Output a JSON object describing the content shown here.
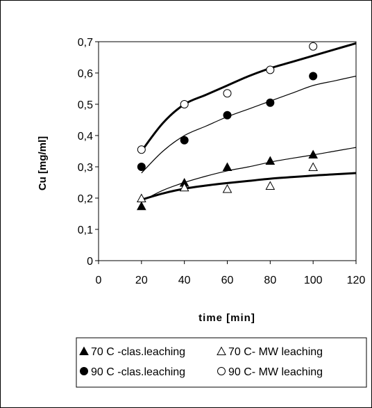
{
  "chart_data": {
    "type": "scatter",
    "title": "",
    "xlabel": "time [min]",
    "ylabel": "Cu [mg/ml]",
    "xlim": [
      0,
      120
    ],
    "ylim": [
      0,
      0.7
    ],
    "xticks": [
      0,
      20,
      40,
      60,
      80,
      100,
      120
    ],
    "yticks": [
      0,
      0.1,
      0.2,
      0.3,
      0.4,
      0.5,
      0.6,
      0.7
    ],
    "xtick_labels": [
      "0",
      "20",
      "40",
      "60",
      "80",
      "100",
      "120"
    ],
    "ytick_labels": [
      "0",
      "0,1",
      "0,2",
      "0,3",
      "0,4",
      "0,5",
      "0,6",
      "0,7"
    ],
    "grid": false,
    "legend_position": "bottom",
    "series": [
      {
        "name": "70 C -clas.leaching",
        "marker": "filled-triangle",
        "x": [
          20,
          40,
          60,
          80,
          100
        ],
        "y": [
          0.175,
          0.25,
          0.3,
          0.32,
          0.34
        ],
        "fit": {
          "x": [
            20,
            30,
            40,
            50,
            60,
            70,
            80,
            90,
            100,
            110,
            120
          ],
          "y": [
            0.19,
            0.225,
            0.25,
            0.27,
            0.287,
            0.3,
            0.315,
            0.327,
            0.338,
            0.35,
            0.362
          ],
          "weight": "thin"
        }
      },
      {
        "name": "70 C- MW leaching",
        "marker": "open-triangle",
        "x": [
          20,
          40,
          60,
          80,
          100
        ],
        "y": [
          0.2,
          0.235,
          0.23,
          0.24,
          0.3
        ],
        "fit": {
          "x": [
            20,
            30,
            40,
            50,
            60,
            70,
            80,
            90,
            100,
            110,
            120
          ],
          "y": [
            0.195,
            0.215,
            0.23,
            0.24,
            0.248,
            0.255,
            0.262,
            0.267,
            0.272,
            0.276,
            0.28
          ],
          "weight": "thick"
        }
      },
      {
        "name": "90 C -clas.leaching",
        "marker": "filled-circle",
        "x": [
          20,
          40,
          60,
          80,
          100
        ],
        "y": [
          0.3,
          0.385,
          0.465,
          0.505,
          0.59
        ],
        "fit": {
          "x": [
            20,
            30,
            40,
            50,
            60,
            70,
            80,
            90,
            100,
            110,
            120
          ],
          "y": [
            0.28,
            0.35,
            0.4,
            0.43,
            0.46,
            0.485,
            0.51,
            0.535,
            0.56,
            0.575,
            0.59
          ],
          "weight": "thin"
        }
      },
      {
        "name": "90 C- MW leaching",
        "marker": "open-circle",
        "x": [
          20,
          40,
          60,
          80,
          100
        ],
        "y": [
          0.355,
          0.5,
          0.535,
          0.61,
          0.685
        ],
        "fit": {
          "x": [
            20,
            30,
            40,
            50,
            60,
            70,
            80,
            90,
            100,
            110,
            120
          ],
          "y": [
            0.35,
            0.44,
            0.5,
            0.53,
            0.56,
            0.59,
            0.615,
            0.635,
            0.655,
            0.675,
            0.695
          ],
          "weight": "thick"
        }
      }
    ],
    "legend_rows": [
      [
        "70 C -clas.leaching",
        "70 C- MW leaching"
      ],
      [
        "90 C -clas.leaching",
        "90 C- MW leaching"
      ]
    ]
  }
}
